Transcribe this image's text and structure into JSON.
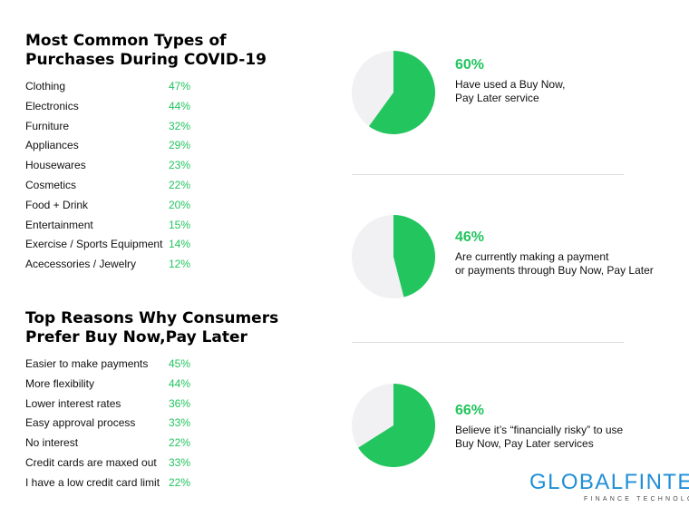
{
  "purchases": {
    "title_lines": [
      "Most Common Types of",
      "Purchases During COVID-19"
    ],
    "items": [
      {
        "label": "Clothing",
        "value": "47%"
      },
      {
        "label": "Electronics",
        "value": "44%"
      },
      {
        "label": "Furniture",
        "value": "32%"
      },
      {
        "label": "Appliances",
        "value": "29%"
      },
      {
        "label": "Housewares",
        "value": "23%"
      },
      {
        "label": "Cosmetics",
        "value": "22%"
      },
      {
        "label": "Food + Drink",
        "value": "20%"
      },
      {
        "label": "Entertainment",
        "value": "15%"
      },
      {
        "label": "Exercise / Sports Equipment",
        "value": "14%"
      },
      {
        "label": "Acecessories / Jewelry",
        "value": "12%"
      }
    ]
  },
  "reasons": {
    "title_lines": [
      "Top Reasons Why Consumers",
      "Prefer Buy Now,Pay Later"
    ],
    "items": [
      {
        "label": "Easier to make payments",
        "value": "45%"
      },
      {
        "label": "More flexibility",
        "value": "44%"
      },
      {
        "label": "Lower interest rates",
        "value": "36%"
      },
      {
        "label": "Easy approval process",
        "value": "33%"
      },
      {
        "label": "No interest",
        "value": "22%"
      },
      {
        "label": "Credit cards are maxed out",
        "value": "33%"
      },
      {
        "label": "I have a low credit card limit",
        "value": "22%"
      }
    ]
  },
  "chart_data": [
    {
      "type": "pie",
      "values": [
        60,
        40
      ],
      "value_label": "60%",
      "description_lines": [
        "Have used a Buy Now,",
        "Pay Later service"
      ],
      "colors": [
        "#22c55e",
        "#f1f1f3"
      ]
    },
    {
      "type": "pie",
      "values": [
        46,
        54
      ],
      "value_label": "46%",
      "description_lines": [
        "Are currently making a payment",
        "or payments through Buy Now, Pay Later"
      ],
      "colors": [
        "#22c55e",
        "#f1f1f3"
      ]
    },
    {
      "type": "pie",
      "values": [
        66,
        34
      ],
      "value_label": "66%",
      "description_lines": [
        "Believe it’s “financially risky” to use",
        "Buy Now, Pay Later services"
      ],
      "colors": [
        "#22c55e",
        "#f1f1f3"
      ]
    }
  ],
  "logo": {
    "name": "GLOBALFINTECH",
    "tagline": "FINANCE TECHNOLOGY"
  }
}
